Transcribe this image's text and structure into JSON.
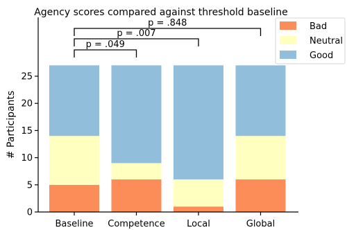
{
  "chart_data": {
    "type": "bar",
    "stacked": true,
    "title": "Agency scores compared against threshold baseline",
    "xlabel": "",
    "ylabel": "# Participants",
    "categories": [
      "Baseline",
      "Competence",
      "Local",
      "Global"
    ],
    "series": [
      {
        "name": "Bad",
        "color": "#fc8d59",
        "values": [
          5,
          6,
          1,
          6
        ]
      },
      {
        "name": "Neutral",
        "color": "#ffffbf",
        "values": [
          9,
          3,
          5,
          8
        ]
      },
      {
        "name": "Good",
        "color": "#91bfdb",
        "values": [
          13,
          18,
          21,
          13
        ]
      }
    ],
    "ylim": [
      0,
      29
    ],
    "yticks": [
      0,
      5,
      10,
      15,
      20,
      25
    ],
    "grid": false,
    "legend": "top-right",
    "annotations": [
      {
        "from": "Baseline",
        "to": "Competence",
        "label": "p = .049"
      },
      {
        "from": "Baseline",
        "to": "Local",
        "label": "p = .007"
      },
      {
        "from": "Baseline",
        "to": "Global",
        "label": "p = .848"
      }
    ]
  }
}
